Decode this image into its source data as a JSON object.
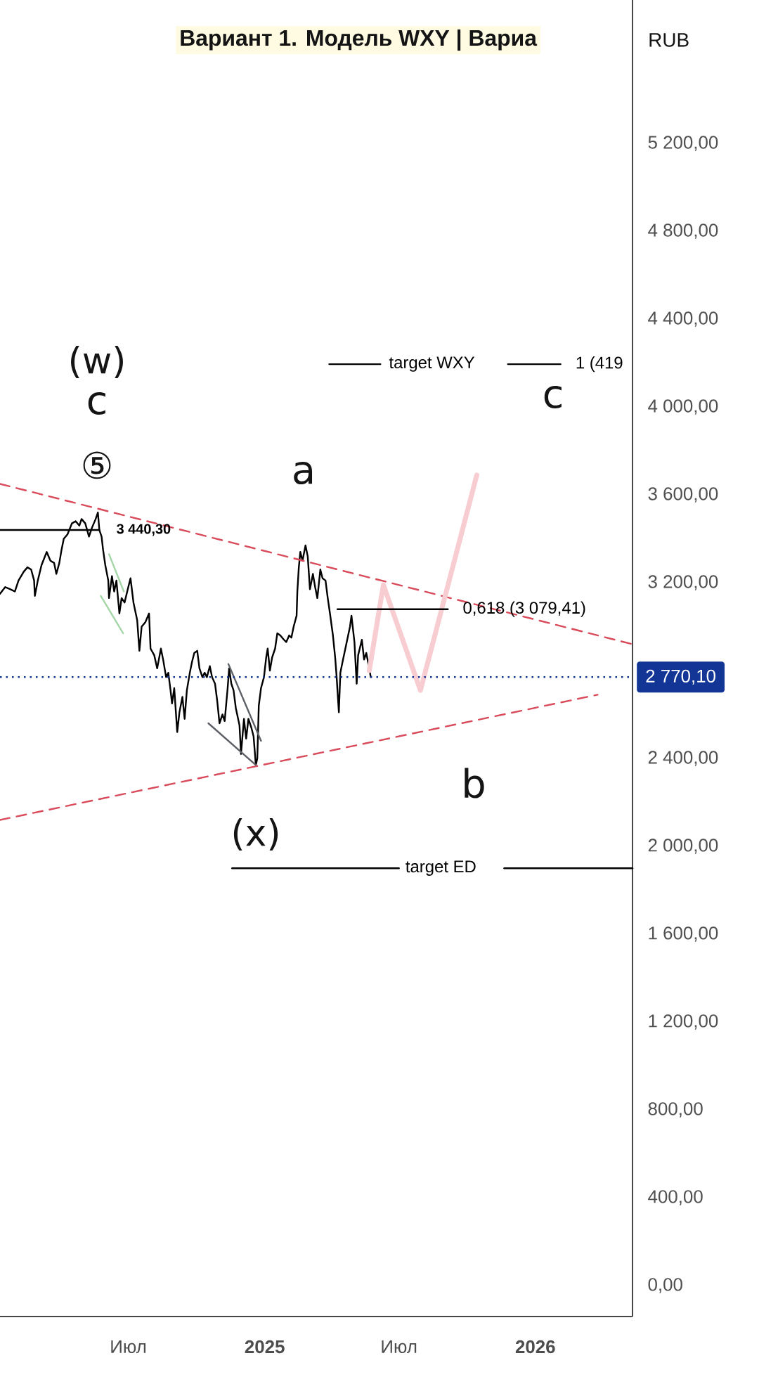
{
  "chart_data": {
    "type": "line",
    "title": "Вариант 1. Модель WXY | Вариа",
    "xlim": [
      "2024-01-10",
      "2026-05-12"
    ],
    "ylim": [
      -141,
      5853
    ],
    "xticks": [
      {
        "value": "2024-07-01",
        "label": "Июл"
      },
      {
        "value": "2025-01-01",
        "label": "2025"
      },
      {
        "value": "2025-07-01",
        "label": "Июл"
      },
      {
        "value": "2026-01-01",
        "label": "2026"
      }
    ],
    "yticks": [
      {
        "value": 0,
        "label": "0,00"
      },
      {
        "value": 400,
        "label": "400,00"
      },
      {
        "value": 800,
        "label": "800,00"
      },
      {
        "value": 1200,
        "label": "1 200,00"
      },
      {
        "value": 1600,
        "label": "1 600,00"
      },
      {
        "value": 2000,
        "label": "2 000,00"
      },
      {
        "value": 2400,
        "label": "2 400,00"
      },
      {
        "value": 3200,
        "label": "3 200,00"
      },
      {
        "value": 3600,
        "label": "3 600,00"
      },
      {
        "value": 4000,
        "label": "4 000,00"
      },
      {
        "value": 4400,
        "label": "4 400,00"
      },
      {
        "value": 4800,
        "label": "4 800,00"
      },
      {
        "value": 5200,
        "label": "5 200,00"
      }
    ],
    "series": [
      {
        "color": "#000000",
        "x": [
          "2024-01-10",
          "2024-01-17",
          "2024-01-24",
          "2024-01-30",
          "2024-02-04",
          "2024-02-11",
          "2024-02-16",
          "2024-02-21",
          "2024-02-25",
          "2024-02-26",
          "2024-03-01",
          "2024-03-06",
          "2024-03-13",
          "2024-03-18",
          "2024-03-23",
          "2024-03-26",
          "2024-03-30",
          "2024-04-02",
          "2024-04-05",
          "2024-04-10",
          "2024-04-16",
          "2024-04-21",
          "2024-04-26",
          "2024-04-29",
          "2024-05-04",
          "2024-05-09",
          "2024-05-13",
          "2024-05-18",
          "2024-05-21",
          "2024-05-23",
          "2024-05-26",
          "2024-05-28",
          "2024-05-31",
          "2024-06-04",
          "2024-06-05",
          "2024-06-09",
          "2024-06-12",
          "2024-06-15",
          "2024-06-19",
          "2024-06-22",
          "2024-06-26",
          "2024-07-01",
          "2024-07-04",
          "2024-07-08",
          "2024-07-13",
          "2024-07-16",
          "2024-07-19",
          "2024-07-24",
          "2024-07-29",
          "2024-07-31",
          "2024-08-05",
          "2024-08-09",
          "2024-08-14",
          "2024-08-17",
          "2024-08-21",
          "2024-08-24",
          "2024-08-27",
          "2024-08-29",
          "2024-09-01",
          "2024-09-05",
          "2024-09-08",
          "2024-09-12",
          "2024-09-15",
          "2024-09-18",
          "2024-09-22",
          "2024-09-25",
          "2024-09-28",
          "2024-10-02",
          "2024-10-05",
          "2024-10-09",
          "2024-10-12",
          "2024-10-15",
          "2024-10-19",
          "2024-10-22",
          "2024-10-26",
          "2024-10-29",
          "2024-11-01",
          "2024-11-05",
          "2024-11-08",
          "2024-11-12",
          "2024-11-14",
          "2024-11-17",
          "2024-11-20",
          "2024-11-23",
          "2024-11-28",
          "2024-11-30",
          "2024-12-04",
          "2024-12-07",
          "2024-12-10",
          "2024-12-14",
          "2024-12-17",
          "2024-12-20",
          "2024-12-22",
          "2024-12-24",
          "2024-12-27",
          "2024-12-31",
          "2025-01-03",
          "2025-01-05",
          "2025-01-08",
          "2025-01-11",
          "2025-01-15",
          "2025-01-18",
          "2025-01-22",
          "2025-01-27",
          "2025-01-30",
          "2025-02-03",
          "2025-02-06",
          "2025-02-09",
          "2025-02-13",
          "2025-02-14",
          "2025-02-16",
          "2025-02-18",
          "2025-02-21",
          "2025-02-25",
          "2025-02-28",
          "2025-03-03",
          "2025-03-07",
          "2025-03-10",
          "2025-03-13",
          "2025-03-17",
          "2025-03-20",
          "2025-03-24",
          "2025-03-27",
          "2025-03-30",
          "2025-04-03",
          "2025-04-06",
          "2025-04-08",
          "2025-04-11",
          "2025-04-13",
          "2025-04-16",
          "2025-04-21",
          "2025-04-26",
          "2025-04-28",
          "2025-05-02",
          "2025-05-05",
          "2025-05-07",
          "2025-05-12",
          "2025-05-15",
          "2025-05-18",
          "2025-05-22",
          "2025-05-24"
        ],
        "values": [
          3150,
          3180,
          3170,
          3160,
          3210,
          3250,
          3270,
          3260,
          3210,
          3140,
          3210,
          3280,
          3340,
          3300,
          3290,
          3240,
          3290,
          3350,
          3400,
          3420,
          3470,
          3480,
          3460,
          3490,
          3470,
          3410,
          3450,
          3490,
          3520,
          3440,
          3410,
          3350,
          3280,
          3210,
          3130,
          3230,
          3160,
          3210,
          3060,
          3130,
          3110,
          3180,
          3220,
          3110,
          3030,
          2890,
          3000,
          3020,
          3060,
          2900,
          2870,
          2810,
          2900,
          2850,
          2770,
          2790,
          2710,
          2650,
          2720,
          2520,
          2610,
          2680,
          2580,
          2710,
          2790,
          2840,
          2880,
          2890,
          2810,
          2770,
          2790,
          2770,
          2820,
          2770,
          2740,
          2660,
          2560,
          2600,
          2570,
          2720,
          2810,
          2740,
          2710,
          2630,
          2550,
          2420,
          2580,
          2490,
          2580,
          2540,
          2500,
          2370,
          2400,
          2640,
          2720,
          2770,
          2860,
          2900,
          2800,
          2860,
          2900,
          2970,
          2960,
          2940,
          2930,
          2960,
          2950,
          3000,
          3050,
          3160,
          3270,
          3340,
          3300,
          3370,
          3320,
          3170,
          3240,
          3180,
          3130,
          3260,
          3220,
          3210,
          3130,
          3060,
          2960,
          2860,
          2770,
          2610,
          2790,
          2840,
          2920,
          3000,
          3050,
          2930,
          2740,
          2870,
          2940,
          2850,
          2880,
          2810,
          2770
        ]
      },
      {
        "color": "#d94a5a",
        "line_style": "dashed",
        "x": [
          "2024-01-10",
          "2026-05-12"
        ],
        "values": [
          3650,
          2920
        ]
      },
      {
        "color": "#d94a5a",
        "line_style": "dashed",
        "x": [
          "2024-01-10",
          "2026-03-26"
        ],
        "values": [
          2120,
          2690
        ]
      },
      {
        "color": "#f8cdd1",
        "x": [
          "2025-05-22",
          "2025-06-10",
          "2025-07-30",
          "2025-10-14"
        ],
        "values": [
          2800,
          3190,
          2710,
          3690
        ]
      },
      {
        "color": "#5d6066",
        "x": [
          "2024-11-13",
          "2024-12-27"
        ],
        "values": [
          2830,
          2480
        ]
      },
      {
        "color": "#5d6066",
        "x": [
          "2024-10-17",
          "2024-12-20"
        ],
        "values": [
          2560,
          2370
        ]
      },
      {
        "color": "#a5d6a7",
        "x": [
          "2024-06-05",
          "2024-06-25"
        ],
        "values": [
          3330,
          3160
        ]
      },
      {
        "color": "#a5d6a7",
        "x": [
          "2024-05-25",
          "2024-06-24"
        ],
        "values": [
          3140,
          2970
        ]
      },
      {
        "color": "#000000",
        "x": [
          "2024-01-10",
          "2024-05-23"
        ],
        "values": [
          3440.3,
          3440.3
        ]
      },
      {
        "color": "#000000",
        "x": [
          "2025-04-09",
          "2025-09-05"
        ],
        "values": [
          3079.41,
          3079.41
        ]
      },
      {
        "color": "#000000",
        "x": [
          "2025-03-29",
          "2025-06-06"
        ],
        "values": [
          4195,
          4195
        ]
      },
      {
        "color": "#000000",
        "x": [
          "2025-11-25",
          "2026-02-04"
        ],
        "values": [
          4195,
          4195
        ]
      },
      {
        "color": "#000000",
        "x": [
          "2024-11-18",
          "2025-07-01"
        ],
        "values": [
          1900,
          1900
        ]
      },
      {
        "color": "#000000",
        "x": [
          "2025-11-20",
          "2026-05-12"
        ],
        "values": [
          1900,
          1900
        ]
      }
    ],
    "ref_lines": [
      {
        "axis": "y",
        "value": 2770.1,
        "label": "2 770,10",
        "color": "#123596",
        "line_style": "dotted"
      }
    ],
    "annotations": [
      "(w)",
      "c",
      "⑤",
      "a",
      "c",
      "b",
      "(x)",
      {
        "text": "3 440,30",
        "x": "2024-05-23",
        "y": 3440.3
      },
      {
        "text": "0,618 (3 079,41)",
        "x": "2025-09-05",
        "y": 3079.41
      },
      {
        "text": "target WXY",
        "x": "2025-06-06",
        "y": 4195
      },
      {
        "text": "1 (419",
        "x": "2026-02-04",
        "y": 4195
      },
      {
        "text": "target ED",
        "x": "2025-07-01",
        "y": 1900
      },
      "RUB"
    ]
  }
}
